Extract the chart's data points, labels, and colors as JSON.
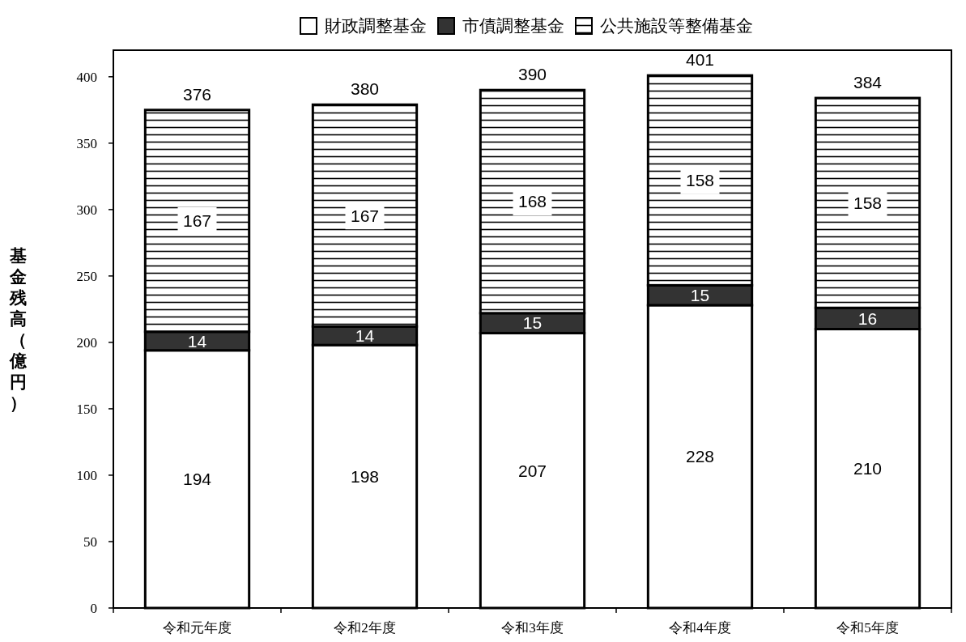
{
  "chart_data": {
    "type": "bar",
    "stacked": true,
    "ylabel": "基金残高（億円）",
    "categories": [
      "令和元年度",
      "令和2年度",
      "令和3年度",
      "令和4年度",
      "令和5年度"
    ],
    "series": [
      {
        "name": "財政調整基金",
        "color": "#ffffff",
        "values": [
          194,
          198,
          207,
          228,
          210
        ]
      },
      {
        "name": "市債調整基金",
        "color": "#333333",
        "values": [
          14,
          14,
          15,
          15,
          16
        ]
      },
      {
        "name": "公共施設等整備基金",
        "color": "#000000",
        "values": [
          167,
          167,
          168,
          158,
          158
        ]
      }
    ],
    "totals": [
      "376",
      "380",
      "390",
      "401",
      "384"
    ],
    "data_labels": true,
    "ylim": [
      0,
      420
    ],
    "yticks": [
      0,
      50,
      100,
      150,
      200,
      250,
      300,
      350,
      400
    ],
    "grid": false,
    "legend": "top"
  }
}
